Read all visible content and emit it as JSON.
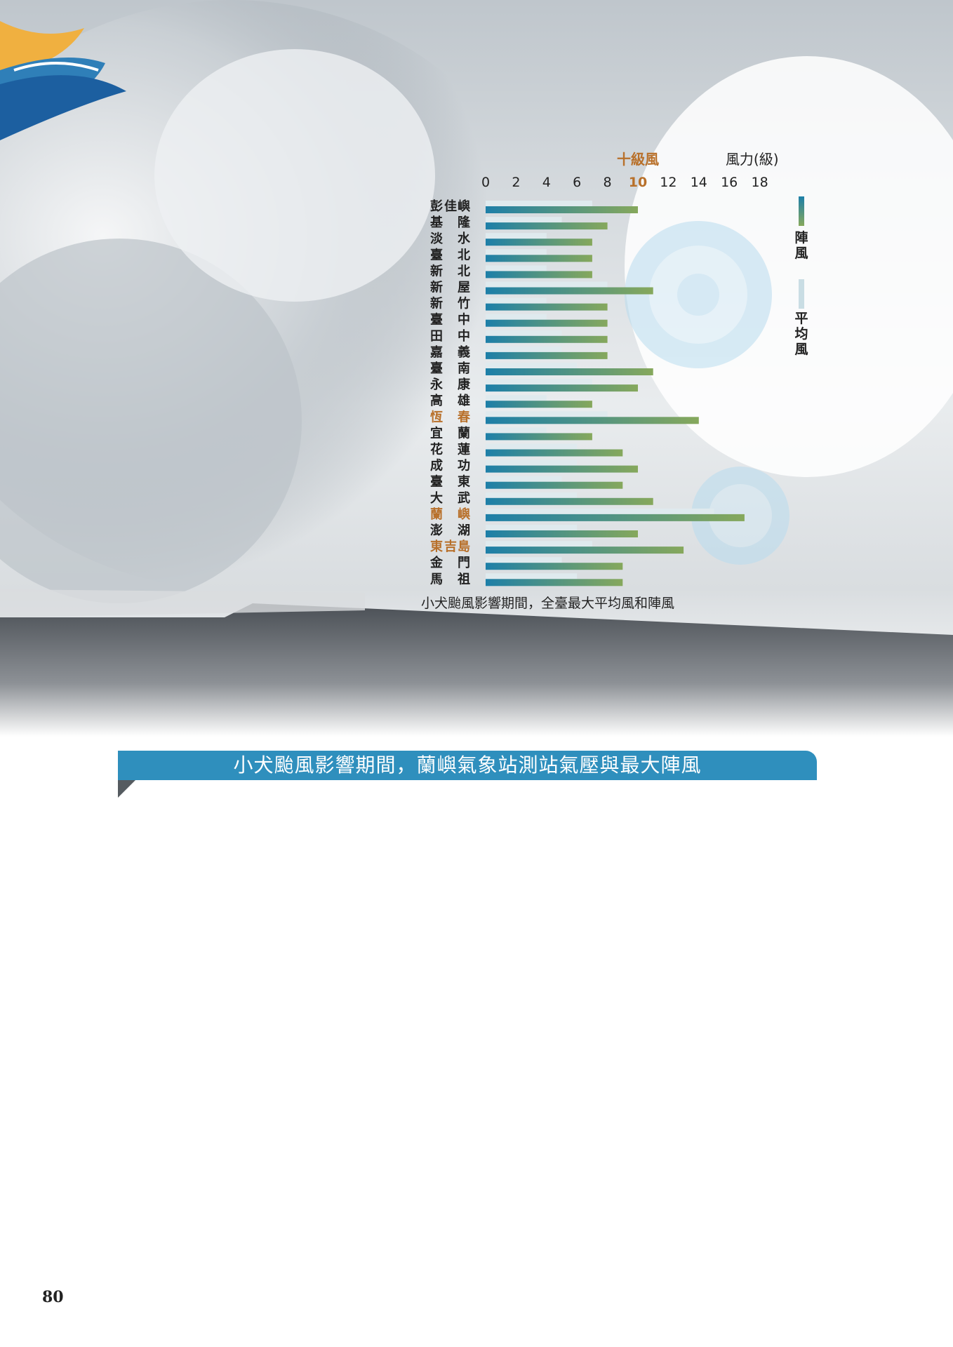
{
  "page_number": "80",
  "section_title": "小犬颱風影響期間，蘭嶼氣象站測站氣壓與最大陣風",
  "colors": {
    "gust_start": "#1d7fa8",
    "gust_end": "#86a85c",
    "mean_bar": "#dfeaee",
    "highlight_label": "#b8702a",
    "normal_label": "#222222",
    "ribbon": "#2f8fbd"
  },
  "chart_data": {
    "type": "bar",
    "orientation": "horizontal",
    "caption": "小犬颱風影響期間，全臺最大平均風和陣風",
    "axis_unit": "風力(級)",
    "reference_label": "十級風",
    "reference_value": 10,
    "xlim": [
      0,
      18
    ],
    "ticks": [
      0,
      2,
      4,
      6,
      8,
      10,
      12,
      14,
      16,
      18
    ],
    "legend": {
      "gust": "陣風",
      "mean": "平均風",
      "position": "right"
    },
    "categories": [
      {
        "label": "彭佳嶼",
        "c1": "彭",
        "c2": "佳",
        "c3": "嶼",
        "highlight": false
      },
      {
        "label": "基隆",
        "c1": "基",
        "c2": "",
        "c3": "隆",
        "highlight": false
      },
      {
        "label": "淡水",
        "c1": "淡",
        "c2": "",
        "c3": "水",
        "highlight": false
      },
      {
        "label": "臺北",
        "c1": "臺",
        "c2": "",
        "c3": "北",
        "highlight": false
      },
      {
        "label": "新北",
        "c1": "新",
        "c2": "",
        "c3": "北",
        "highlight": false
      },
      {
        "label": "新屋",
        "c1": "新",
        "c2": "",
        "c3": "屋",
        "highlight": false
      },
      {
        "label": "新竹",
        "c1": "新",
        "c2": "",
        "c3": "竹",
        "highlight": false
      },
      {
        "label": "臺中",
        "c1": "臺",
        "c2": "",
        "c3": "中",
        "highlight": false
      },
      {
        "label": "田中",
        "c1": "田",
        "c2": "",
        "c3": "中",
        "highlight": false
      },
      {
        "label": "嘉義",
        "c1": "嘉",
        "c2": "",
        "c3": "義",
        "highlight": false
      },
      {
        "label": "臺南",
        "c1": "臺",
        "c2": "",
        "c3": "南",
        "highlight": false
      },
      {
        "label": "永康",
        "c1": "永",
        "c2": "",
        "c3": "康",
        "highlight": false
      },
      {
        "label": "高雄",
        "c1": "高",
        "c2": "",
        "c3": "雄",
        "highlight": false
      },
      {
        "label": "恆春",
        "c1": "恆",
        "c2": "",
        "c3": "春",
        "highlight": true
      },
      {
        "label": "宜蘭",
        "c1": "宜",
        "c2": "",
        "c3": "蘭",
        "highlight": false
      },
      {
        "label": "花蓮",
        "c1": "花",
        "c2": "",
        "c3": "蓮",
        "highlight": false
      },
      {
        "label": "成功",
        "c1": "成",
        "c2": "",
        "c3": "功",
        "highlight": false
      },
      {
        "label": "臺東",
        "c1": "臺",
        "c2": "",
        "c3": "東",
        "highlight": false
      },
      {
        "label": "大武",
        "c1": "大",
        "c2": "",
        "c3": "武",
        "highlight": false
      },
      {
        "label": "蘭嶼",
        "c1": "蘭",
        "c2": "",
        "c3": "嶼",
        "highlight": true
      },
      {
        "label": "澎湖",
        "c1": "澎",
        "c2": "",
        "c3": "湖",
        "highlight": false
      },
      {
        "label": "東吉島",
        "c1": "東",
        "c2": "吉",
        "c3": "島",
        "highlight": true
      },
      {
        "label": "金門",
        "c1": "金",
        "c2": "",
        "c3": "門",
        "highlight": false
      },
      {
        "label": "馬祖",
        "c1": "馬",
        "c2": "",
        "c3": "祖",
        "highlight": false
      }
    ],
    "series": [
      {
        "name": "平均風",
        "values": [
          7,
          5,
          4,
          4,
          4,
          8,
          4,
          4,
          5,
          5,
          6,
          7,
          4,
          8,
          4,
          6,
          6,
          5,
          6,
          15,
          6,
          7,
          5,
          6
        ]
      },
      {
        "name": "陣風",
        "values": [
          10,
          8,
          7,
          7,
          7,
          11,
          8,
          8,
          8,
          8,
          11,
          10,
          7,
          14,
          7,
          9,
          10,
          9,
          11,
          17,
          10,
          13,
          9,
          9
        ]
      }
    ]
  }
}
